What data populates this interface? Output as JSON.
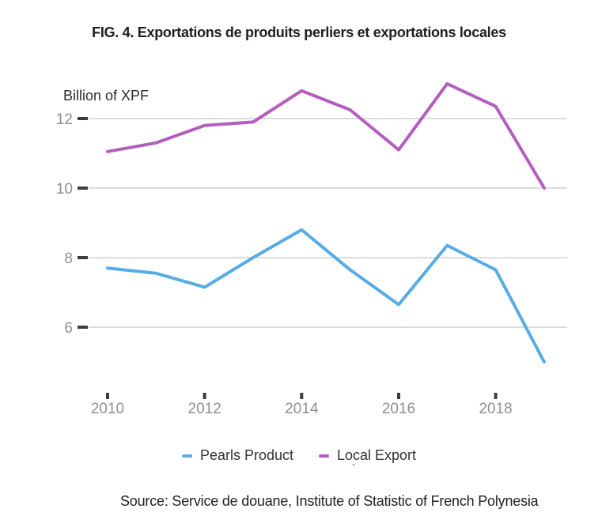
{
  "title": "FIG. 4. Exportations de produits perliers et exportations locales",
  "y_axis_label": "Billion of XPF",
  "source": "Source: Service de douane, Institute of Statistic of French Polynesia",
  "artifact_dot": ".",
  "colors": {
    "pearls_blue": "#57ACE5",
    "local_purple": "#B35EBE",
    "gridline": "#DCDCDC",
    "tick": "#3D3D3D",
    "axis_text": "#8F8F8F",
    "title_text": "#1F1F1F"
  },
  "chart_data": {
    "type": "line",
    "title": "FIG. 4. Exportations de produits perliers et exportations locales",
    "xlabel": "",
    "ylabel": "Billion of XPF",
    "x": [
      2010,
      2011,
      2012,
      2013,
      2014,
      2015,
      2016,
      2017,
      2018,
      2019
    ],
    "x_tick_labels": [
      "2010",
      "2012",
      "2014",
      "2016",
      "2018"
    ],
    "y_ticks": [
      6,
      8,
      10,
      12
    ],
    "ylim": [
      4.7,
      13.3
    ],
    "grid": "horizontal",
    "legend_position": "bottom",
    "series": [
      {
        "name": "Pearls Product",
        "color": "#57ACE5",
        "values": [
          7.7,
          7.55,
          7.15,
          8.0,
          8.8,
          7.65,
          6.65,
          8.35,
          7.65,
          5.0
        ]
      },
      {
        "name": "Local Export",
        "color": "#B35EBE",
        "values": [
          11.05,
          11.3,
          11.8,
          11.9,
          12.8,
          12.25,
          11.1,
          13.0,
          12.35,
          10.0
        ]
      }
    ]
  }
}
